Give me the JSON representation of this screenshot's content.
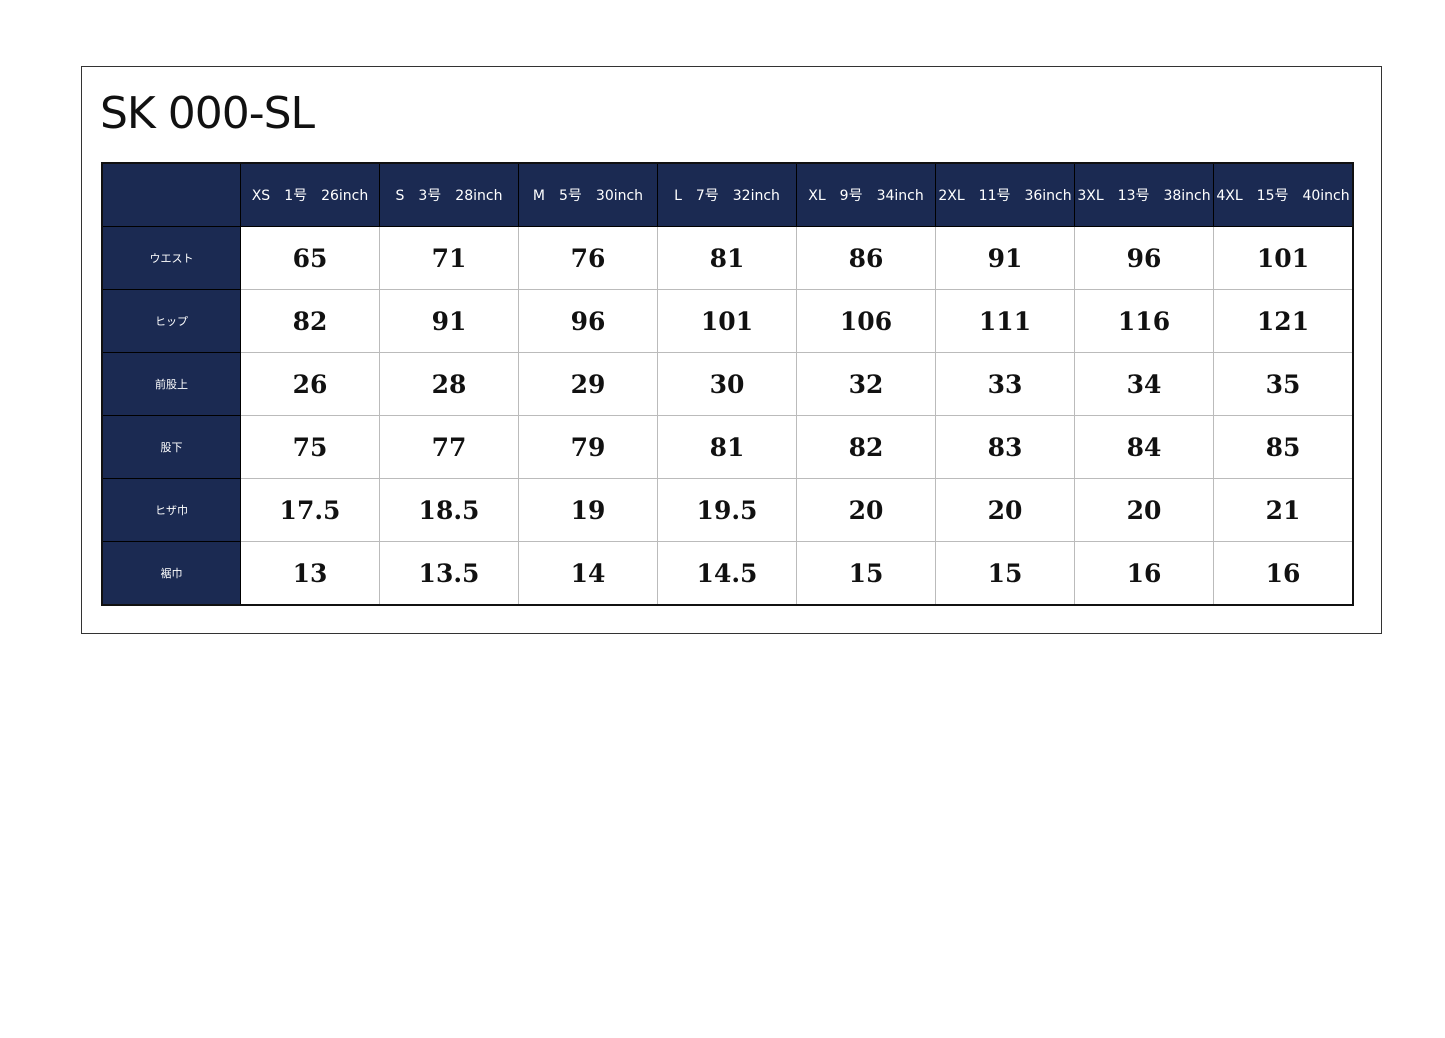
{
  "title": "SK 000-SL",
  "table": {
    "columns": [
      "XS　1号　26inch",
      "S　3号　28inch",
      "M　5号　30inch",
      "L　7号　32inch",
      "XL　9号　34inch",
      "2XL　11号　36inch",
      "3XL　13号　38inch",
      "4XL　15号　40inch"
    ],
    "rows": [
      {
        "label": "ウエスト",
        "values": [
          65,
          71,
          76,
          81,
          86,
          91,
          96,
          101
        ]
      },
      {
        "label": "ヒップ",
        "values": [
          82,
          91,
          96,
          101,
          106,
          111,
          116,
          121
        ]
      },
      {
        "label": "前股上",
        "values": [
          26,
          28,
          29,
          30,
          32,
          33,
          34,
          35
        ]
      },
      {
        "label": "股下",
        "values": [
          75,
          77,
          79,
          81,
          82,
          83,
          84,
          85
        ]
      },
      {
        "label": "ヒザ巾",
        "values": [
          17.5,
          18.5,
          19,
          19.5,
          20,
          20,
          20,
          21
        ]
      },
      {
        "label": "裾巾",
        "values": [
          13,
          13.5,
          14,
          14.5,
          15,
          15,
          16,
          16
        ]
      }
    ]
  }
}
